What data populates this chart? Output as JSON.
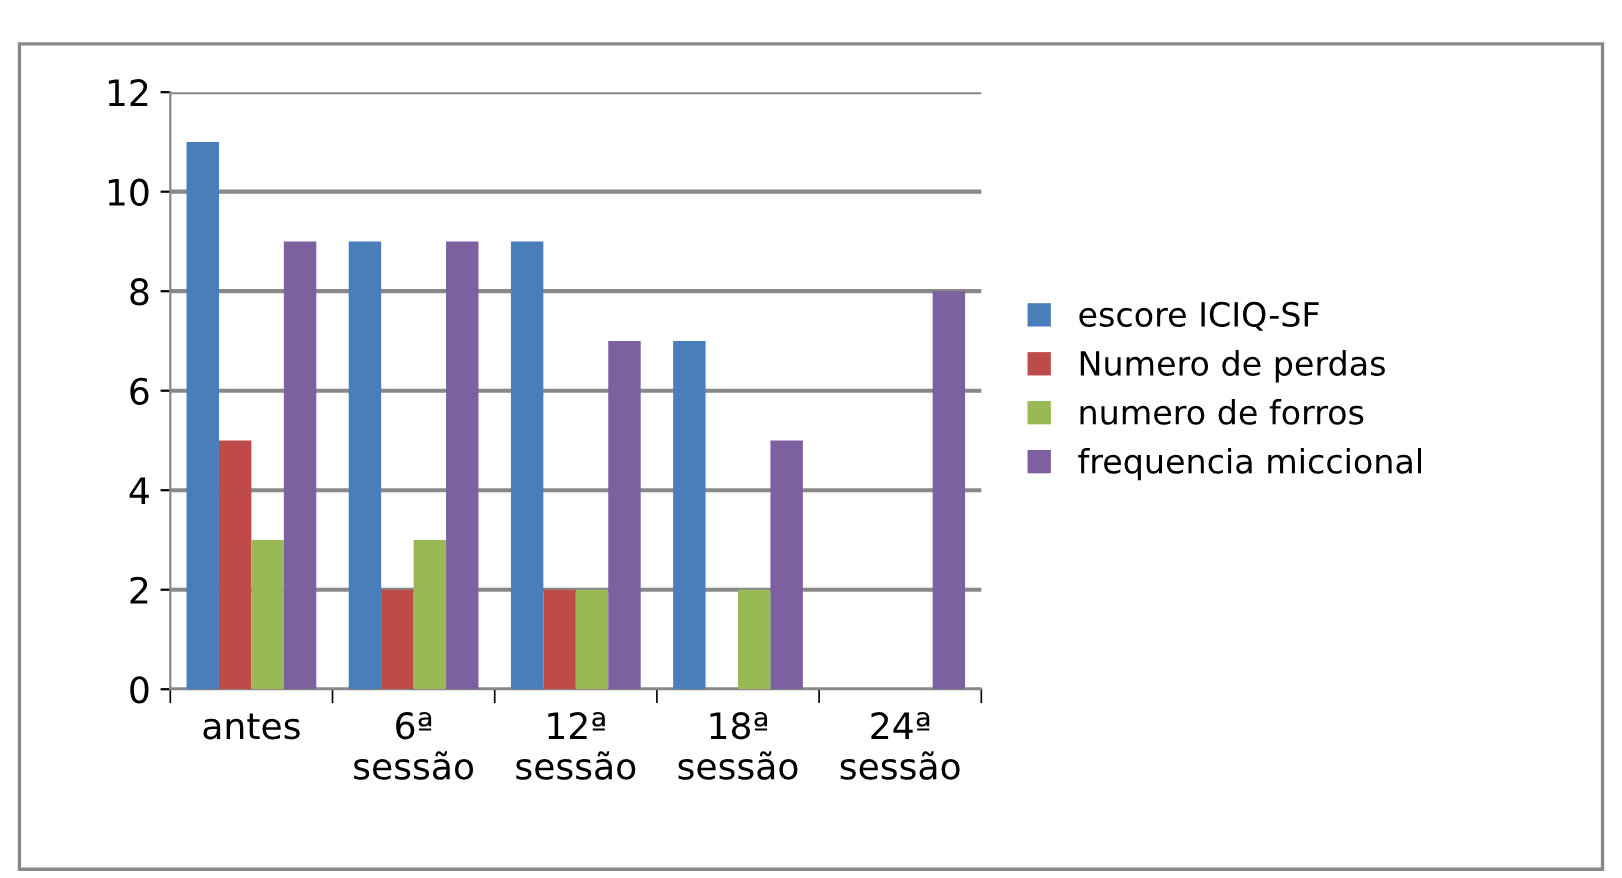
{
  "chart_data": {
    "type": "bar",
    "categories": [
      "antes",
      "6ª sessão",
      "12ª sessão",
      "18ª sessão",
      "24ª sessão"
    ],
    "series": [
      {
        "name": "escore ICIQ-SF",
        "color": "#4a7ebb",
        "values": [
          11,
          9,
          9,
          7,
          0
        ]
      },
      {
        "name": "Numero de perdas",
        "color": "#be4b48",
        "values": [
          5,
          2,
          2,
          0,
          0
        ]
      },
      {
        "name": "numero de forros",
        "color": "#98b954",
        "values": [
          3,
          3,
          2,
          2,
          0
        ]
      },
      {
        "name": "frequencia miccional",
        "color": "#7d60a0",
        "values": [
          9,
          9,
          7,
          5,
          8
        ]
      }
    ],
    "ylim": [
      0,
      12
    ],
    "yticks": [
      0,
      2,
      4,
      6,
      8,
      10,
      12
    ],
    "grid": "y",
    "legend": "right"
  }
}
